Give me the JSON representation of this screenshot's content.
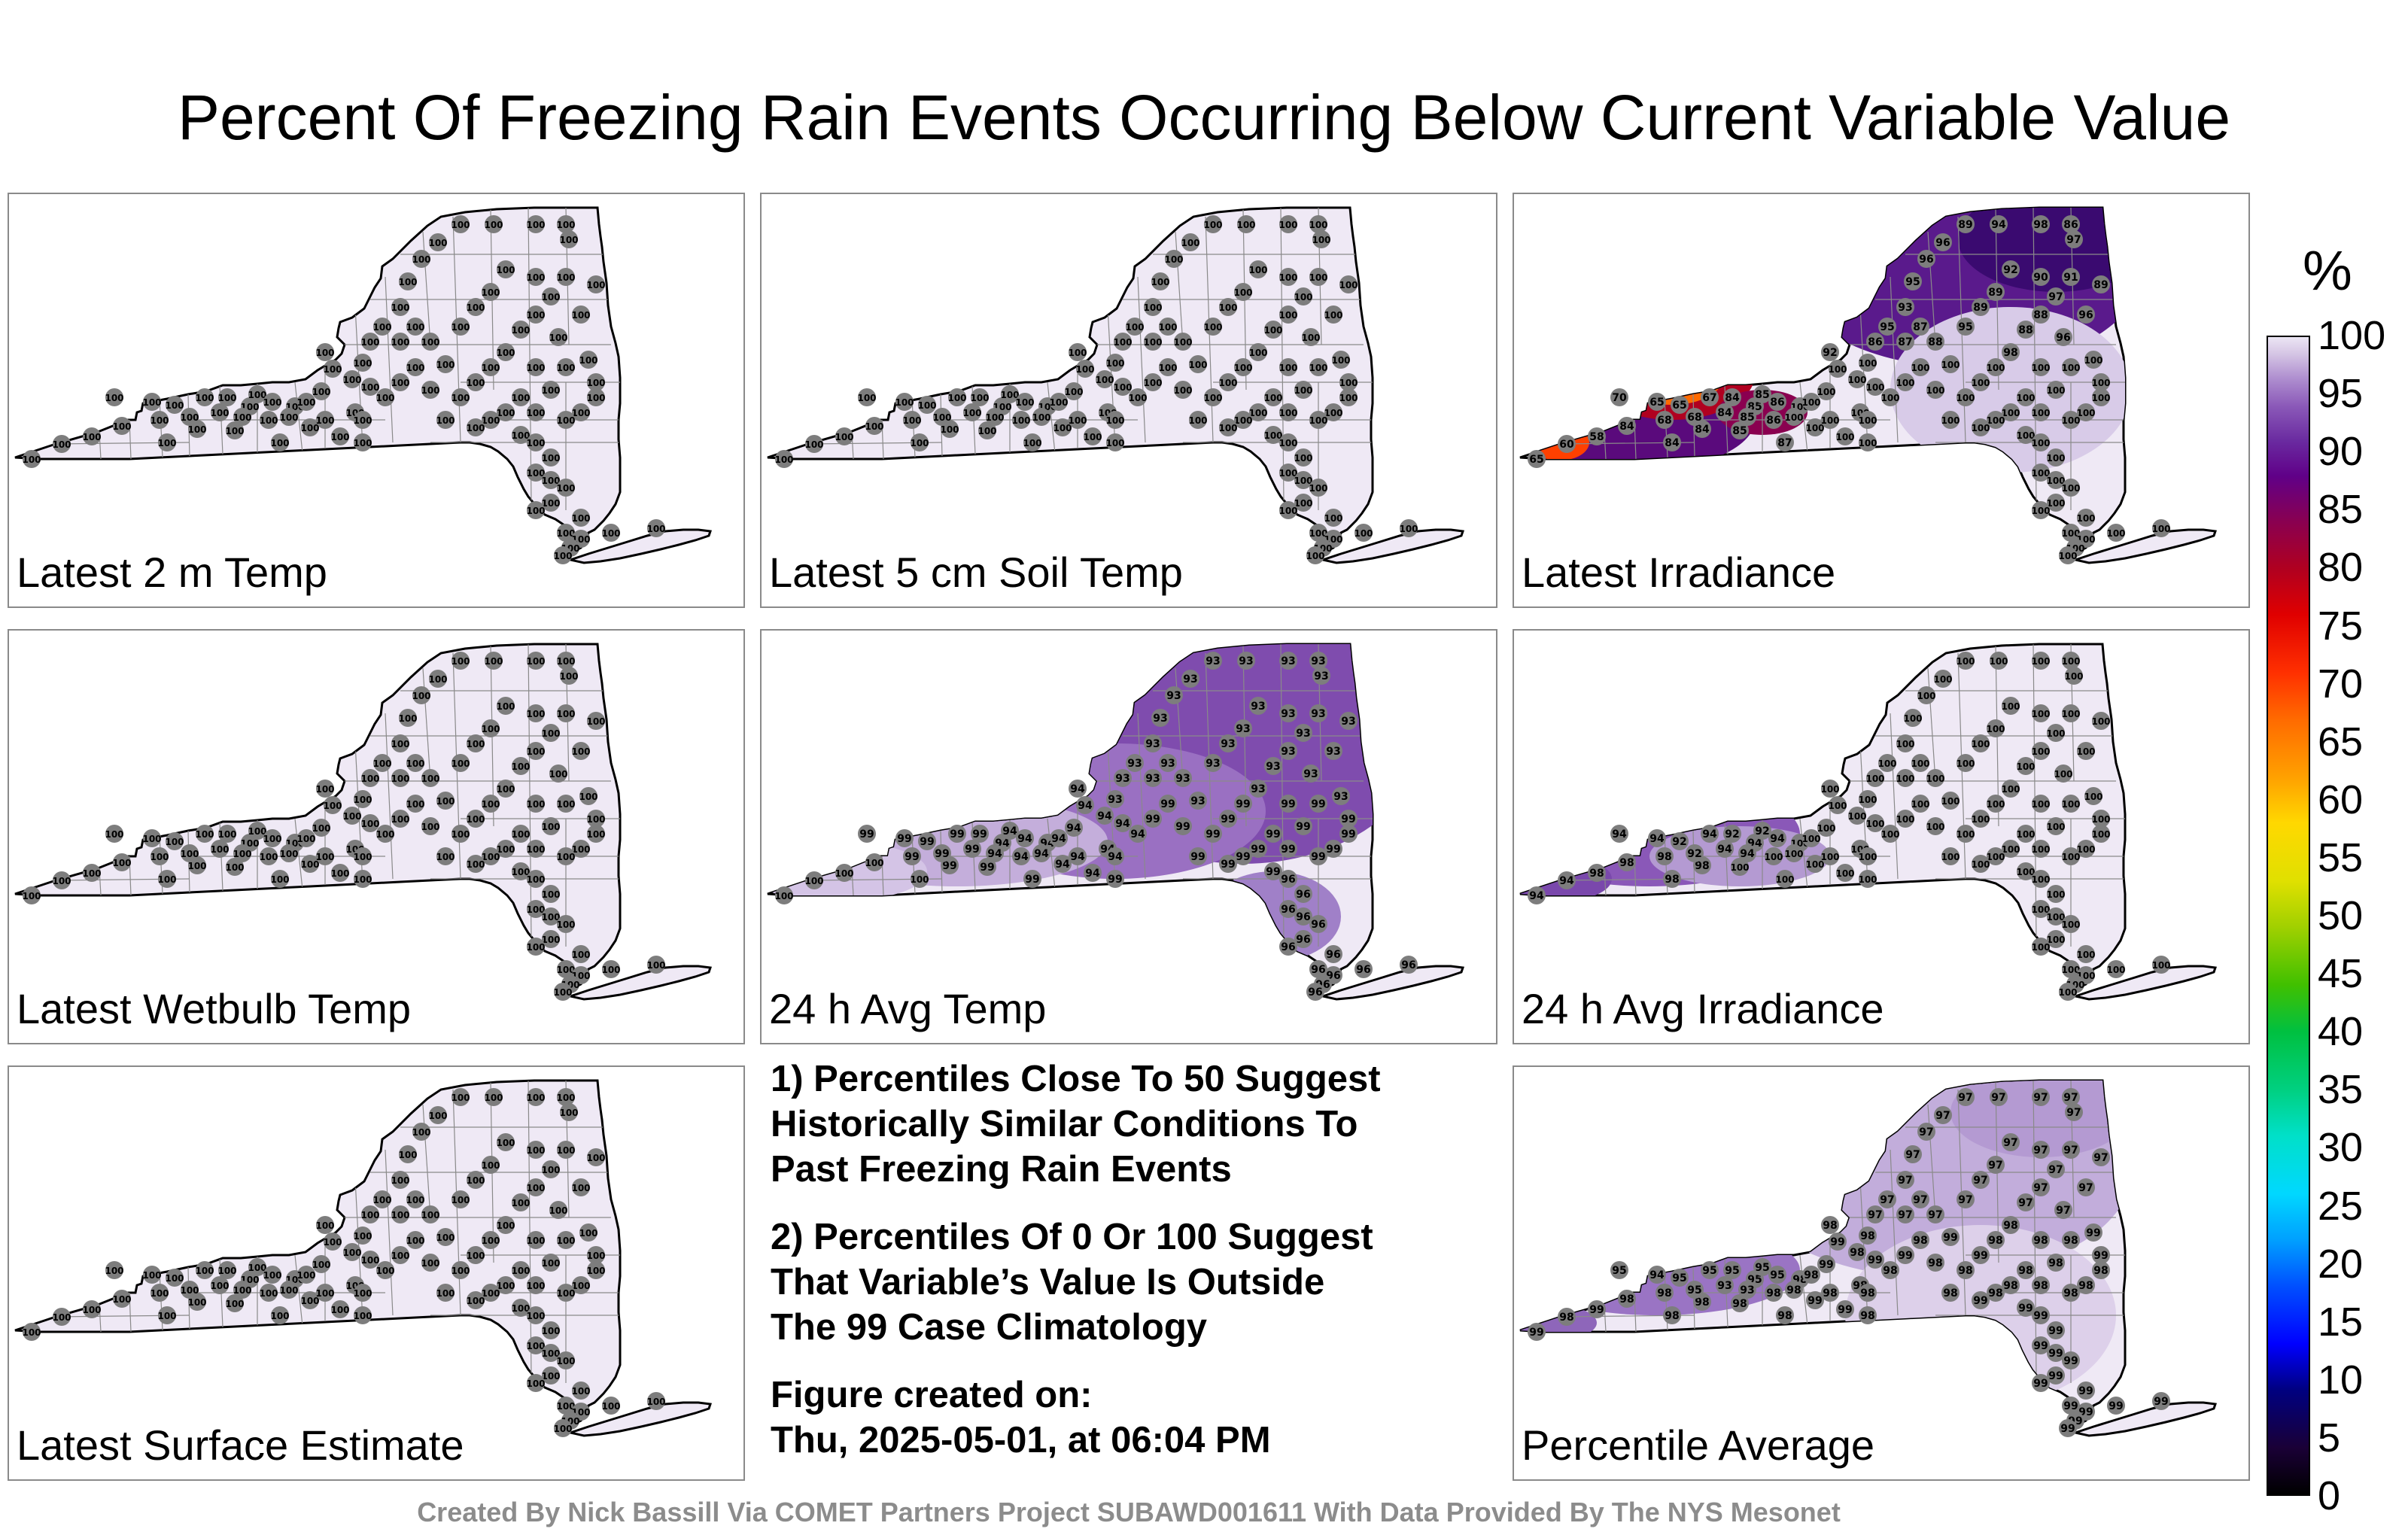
{
  "title": "Percent Of Freezing Rain Events Occurring Below Current Variable Value",
  "panels": [
    {
      "label": "Latest 2 m Temp",
      "station_values": [
        100
      ],
      "fill": "uniform-100"
    },
    {
      "label": "Latest 5 cm Soil Temp",
      "station_values": [
        100
      ],
      "fill": "uniform-100"
    },
    {
      "label": "Latest Irradiance",
      "station_values": [
        57,
        60,
        65,
        68,
        70,
        78,
        79,
        84,
        86,
        87,
        88,
        89,
        91,
        92,
        94,
        96,
        97,
        98,
        99,
        100
      ],
      "fill": "low-west-north"
    },
    {
      "label": "Latest Wetbulb Temp",
      "station_values": [
        100
      ],
      "fill": "uniform-100"
    },
    {
      "label": "24 h Avg Temp",
      "station_values": [
        93,
        94,
        95,
        96,
        99,
        100
      ],
      "fill": "north-93"
    },
    {
      "label": "24 h Avg Irradiance",
      "station_values": [
        92,
        93,
        94,
        95,
        96,
        98,
        100
      ],
      "fill": "west-94"
    },
    {
      "label": "Latest Surface Estimate",
      "station_values": [
        100
      ],
      "fill": "uniform-100"
    },
    {
      "label": "Percentile Average",
      "station_values": [
        93,
        94,
        95,
        96,
        97,
        98,
        99,
        100
      ],
      "fill": "mixed-97"
    }
  ],
  "notes": {
    "n1_l1": "1) Percentiles Close To 50 Suggest",
    "n1_l2": "Historically Similar Conditions To",
    "n1_l3": "Past Freezing Rain Events",
    "n2_l1": "2) Percentiles Of 0 Or 100 Suggest",
    "n2_l2": "That Variable’s Value Is Outside",
    "n2_l3": "The 99 Case Climatology",
    "n3_l1": "Figure created on:",
    "n3_l2": "Thu, 2025-05-01, at 06:04 PM"
  },
  "colorbar": {
    "unit": "%",
    "ticks": [
      "0",
      "5",
      "10",
      "15",
      "20",
      "25",
      "30",
      "35",
      "40",
      "45",
      "50",
      "55",
      "60",
      "65",
      "70",
      "75",
      "80",
      "85",
      "90",
      "95",
      "100"
    ],
    "range": [
      0,
      100
    ]
  },
  "footer": "Created By Nick Bassill Via COMET Partners Project SUBAWD001611 With Data Provided By The NYS Mesonet",
  "colors": {
    "fill_100": "#efe9f5",
    "fill_95": "#d2c4e3",
    "fill_93": "#7f4cae",
    "station_marker": "#7d7d7d"
  }
}
